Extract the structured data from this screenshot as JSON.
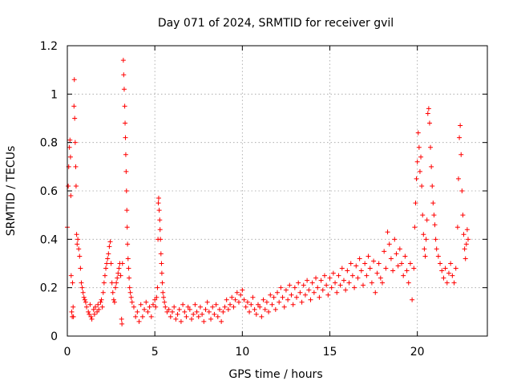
{
  "chart_data": {
    "type": "scatter",
    "title": "Day 071 of 2024, SRMTID for receiver gvil",
    "xlabel": "GPS time / hours",
    "ylabel": "SRMTID / TECUs",
    "xlim": [
      0,
      24
    ],
    "ylim": [
      0,
      1.2
    ],
    "xticks": [
      0,
      5,
      10,
      15,
      20
    ],
    "xtick_labels": [
      "0",
      "5",
      "10",
      "15",
      "20"
    ],
    "yticks": [
      0,
      0.2,
      0.4,
      0.6,
      0.8,
      1.0,
      1.2
    ],
    "ytick_labels": [
      "0",
      "0.2",
      "0.4",
      "0.6",
      "0.8",
      "1",
      "1.2"
    ],
    "grid": true,
    "marker": "+",
    "color": "#ff0000",
    "series": [
      {
        "name": "SRMTID",
        "points": [
          [
            0.0,
            0.45
          ],
          [
            0.05,
            0.62
          ],
          [
            0.08,
            0.7
          ],
          [
            0.12,
            0.78
          ],
          [
            0.15,
            0.81
          ],
          [
            0.18,
            0.74
          ],
          [
            0.2,
            0.58
          ],
          [
            0.22,
            0.25
          ],
          [
            0.25,
            0.1
          ],
          [
            0.28,
            0.08
          ],
          [
            0.3,
            0.22
          ],
          [
            0.33,
            0.12
          ],
          [
            0.35,
            0.08
          ],
          [
            0.38,
            0.95
          ],
          [
            0.4,
            1.06
          ],
          [
            0.42,
            0.9
          ],
          [
            0.45,
            0.8
          ],
          [
            0.48,
            0.7
          ],
          [
            0.5,
            0.62
          ],
          [
            0.53,
            0.42
          ],
          [
            0.56,
            0.38
          ],
          [
            0.6,
            0.4
          ],
          [
            0.65,
            0.36
          ],
          [
            0.7,
            0.33
          ],
          [
            0.75,
            0.28
          ],
          [
            0.8,
            0.22
          ],
          [
            0.85,
            0.2
          ],
          [
            0.9,
            0.18
          ],
          [
            0.95,
            0.16
          ],
          [
            1.0,
            0.15
          ],
          [
            1.05,
            0.14
          ],
          [
            1.1,
            0.12
          ],
          [
            1.2,
            0.1
          ],
          [
            1.25,
            0.09
          ],
          [
            1.3,
            0.13
          ],
          [
            1.35,
            0.08
          ],
          [
            1.4,
            0.07
          ],
          [
            1.5,
            0.11
          ],
          [
            1.55,
            0.09
          ],
          [
            1.6,
            0.12
          ],
          [
            1.7,
            0.1
          ],
          [
            1.75,
            0.13
          ],
          [
            1.8,
            0.11
          ],
          [
            1.9,
            0.14
          ],
          [
            1.95,
            0.15
          ],
          [
            2.0,
            0.12
          ],
          [
            2.05,
            0.18
          ],
          [
            2.1,
            0.22
          ],
          [
            2.15,
            0.25
          ],
          [
            2.2,
            0.28
          ],
          [
            2.25,
            0.3
          ],
          [
            2.3,
            0.32
          ],
          [
            2.35,
            0.34
          ],
          [
            2.4,
            0.37
          ],
          [
            2.45,
            0.39
          ],
          [
            2.5,
            0.3
          ],
          [
            2.55,
            0.22
          ],
          [
            2.6,
            0.18
          ],
          [
            2.65,
            0.15
          ],
          [
            2.7,
            0.14
          ],
          [
            2.75,
            0.2
          ],
          [
            2.8,
            0.22
          ],
          [
            2.85,
            0.24
          ],
          [
            2.9,
            0.26
          ],
          [
            2.95,
            0.28
          ],
          [
            3.0,
            0.3
          ],
          [
            3.05,
            0.25
          ],
          [
            3.1,
            0.07
          ],
          [
            3.12,
            0.05
          ],
          [
            3.15,
            0.3
          ],
          [
            3.2,
            1.14
          ],
          [
            3.22,
            1.08
          ],
          [
            3.25,
            1.02
          ],
          [
            3.28,
            0.95
          ],
          [
            3.3,
            0.88
          ],
          [
            3.32,
            0.82
          ],
          [
            3.34,
            0.75
          ],
          [
            3.36,
            0.68
          ],
          [
            3.38,
            0.6
          ],
          [
            3.4,
            0.52
          ],
          [
            3.42,
            0.45
          ],
          [
            3.44,
            0.38
          ],
          [
            3.47,
            0.32
          ],
          [
            3.5,
            0.28
          ],
          [
            3.53,
            0.24
          ],
          [
            3.56,
            0.2
          ],
          [
            3.6,
            0.18
          ],
          [
            3.65,
            0.16
          ],
          [
            3.7,
            0.14
          ],
          [
            3.8,
            0.12
          ],
          [
            3.9,
            0.08
          ],
          [
            4.0,
            0.1
          ],
          [
            4.1,
            0.06
          ],
          [
            4.2,
            0.13
          ],
          [
            4.3,
            0.08
          ],
          [
            4.4,
            0.11
          ],
          [
            4.5,
            0.14
          ],
          [
            4.6,
            0.1
          ],
          [
            4.7,
            0.12
          ],
          [
            4.8,
            0.08
          ],
          [
            4.9,
            0.13
          ],
          [
            5.0,
            0.15
          ],
          [
            5.05,
            0.12
          ],
          [
            5.1,
            0.16
          ],
          [
            5.15,
            0.2
          ],
          [
            5.18,
            0.4
          ],
          [
            5.2,
            0.55
          ],
          [
            5.22,
            0.57
          ],
          [
            5.25,
            0.52
          ],
          [
            5.28,
            0.48
          ],
          [
            5.3,
            0.44
          ],
          [
            5.32,
            0.4
          ],
          [
            5.35,
            0.34
          ],
          [
            5.38,
            0.3
          ],
          [
            5.4,
            0.26
          ],
          [
            5.43,
            0.22
          ],
          [
            5.46,
            0.18
          ],
          [
            5.5,
            0.16
          ],
          [
            5.55,
            0.14
          ],
          [
            5.6,
            0.12
          ],
          [
            5.7,
            0.1
          ],
          [
            5.8,
            0.11
          ],
          [
            5.9,
            0.08
          ],
          [
            6.0,
            0.1
          ],
          [
            6.1,
            0.12
          ],
          [
            6.2,
            0.07
          ],
          [
            6.3,
            0.09
          ],
          [
            6.4,
            0.11
          ],
          [
            6.5,
            0.06
          ],
          [
            6.6,
            0.13
          ],
          [
            6.7,
            0.1
          ],
          [
            6.8,
            0.08
          ],
          [
            6.9,
            0.12
          ],
          [
            7.0,
            0.11
          ],
          [
            7.1,
            0.07
          ],
          [
            7.2,
            0.09
          ],
          [
            7.3,
            0.13
          ],
          [
            7.4,
            0.1
          ],
          [
            7.5,
            0.08
          ],
          [
            7.6,
            0.12
          ],
          [
            7.7,
            0.09
          ],
          [
            7.8,
            0.06
          ],
          [
            7.9,
            0.11
          ],
          [
            8.0,
            0.14
          ],
          [
            8.1,
            0.1
          ],
          [
            8.2,
            0.07
          ],
          [
            8.3,
            0.12
          ],
          [
            8.4,
            0.09
          ],
          [
            8.5,
            0.13
          ],
          [
            8.6,
            0.08
          ],
          [
            8.7,
            0.11
          ],
          [
            8.8,
            0.06
          ],
          [
            8.9,
            0.1
          ],
          [
            9.0,
            0.12
          ],
          [
            9.1,
            0.15
          ],
          [
            9.2,
            0.11
          ],
          [
            9.3,
            0.13
          ],
          [
            9.4,
            0.16
          ],
          [
            9.5,
            0.12
          ],
          [
            9.6,
            0.15
          ],
          [
            9.7,
            0.18
          ],
          [
            9.8,
            0.14
          ],
          [
            9.9,
            0.17
          ],
          [
            10.0,
            0.19
          ],
          [
            10.1,
            0.15
          ],
          [
            10.2,
            0.12
          ],
          [
            10.3,
            0.14
          ],
          [
            10.4,
            0.1
          ],
          [
            10.5,
            0.13
          ],
          [
            10.6,
            0.16
          ],
          [
            10.7,
            0.11
          ],
          [
            10.8,
            0.09
          ],
          [
            10.9,
            0.13
          ],
          [
            11.0,
            0.12
          ],
          [
            11.1,
            0.08
          ],
          [
            11.2,
            0.15
          ],
          [
            11.3,
            0.11
          ],
          [
            11.4,
            0.14
          ],
          [
            11.5,
            0.1
          ],
          [
            11.6,
            0.17
          ],
          [
            11.7,
            0.13
          ],
          [
            11.8,
            0.16
          ],
          [
            11.9,
            0.11
          ],
          [
            12.0,
            0.18
          ],
          [
            12.1,
            0.14
          ],
          [
            12.2,
            0.2
          ],
          [
            12.3,
            0.16
          ],
          [
            12.4,
            0.12
          ],
          [
            12.5,
            0.19
          ],
          [
            12.6,
            0.15
          ],
          [
            12.7,
            0.21
          ],
          [
            12.8,
            0.17
          ],
          [
            12.9,
            0.13
          ],
          [
            13.0,
            0.2
          ],
          [
            13.1,
            0.16
          ],
          [
            13.2,
            0.22
          ],
          [
            13.3,
            0.18
          ],
          [
            13.4,
            0.14
          ],
          [
            13.5,
            0.21
          ],
          [
            13.6,
            0.17
          ],
          [
            13.7,
            0.23
          ],
          [
            13.8,
            0.19
          ],
          [
            13.9,
            0.15
          ],
          [
            14.0,
            0.22
          ],
          [
            14.1,
            0.18
          ],
          [
            14.2,
            0.24
          ],
          [
            14.3,
            0.2
          ],
          [
            14.4,
            0.16
          ],
          [
            14.5,
            0.23
          ],
          [
            14.6,
            0.19
          ],
          [
            14.7,
            0.25
          ],
          [
            14.8,
            0.21
          ],
          [
            14.9,
            0.17
          ],
          [
            15.0,
            0.24
          ],
          [
            15.1,
            0.2
          ],
          [
            15.2,
            0.26
          ],
          [
            15.3,
            0.22
          ],
          [
            15.4,
            0.18
          ],
          [
            15.5,
            0.25
          ],
          [
            15.6,
            0.21
          ],
          [
            15.7,
            0.28
          ],
          [
            15.8,
            0.23
          ],
          [
            15.9,
            0.19
          ],
          [
            16.0,
            0.27
          ],
          [
            16.1,
            0.22
          ],
          [
            16.2,
            0.3
          ],
          [
            16.3,
            0.25
          ],
          [
            16.4,
            0.2
          ],
          [
            16.5,
            0.29
          ],
          [
            16.6,
            0.24
          ],
          [
            16.7,
            0.32
          ],
          [
            16.8,
            0.27
          ],
          [
            16.9,
            0.21
          ],
          [
            17.0,
            0.3
          ],
          [
            17.1,
            0.25
          ],
          [
            17.2,
            0.33
          ],
          [
            17.3,
            0.28
          ],
          [
            17.4,
            0.22
          ],
          [
            17.5,
            0.31
          ],
          [
            17.6,
            0.18
          ],
          [
            17.7,
            0.26
          ],
          [
            17.8,
            0.3
          ],
          [
            17.9,
            0.24
          ],
          [
            18.0,
            0.22
          ],
          [
            18.1,
            0.35
          ],
          [
            18.2,
            0.28
          ],
          [
            18.3,
            0.43
          ],
          [
            18.4,
            0.38
          ],
          [
            18.5,
            0.32
          ],
          [
            18.6,
            0.27
          ],
          [
            18.7,
            0.4
          ],
          [
            18.8,
            0.34
          ],
          [
            18.9,
            0.29
          ],
          [
            19.0,
            0.36
          ],
          [
            19.1,
            0.3
          ],
          [
            19.2,
            0.25
          ],
          [
            19.3,
            0.33
          ],
          [
            19.4,
            0.27
          ],
          [
            19.5,
            0.22
          ],
          [
            19.6,
            0.3
          ],
          [
            19.7,
            0.15
          ],
          [
            19.8,
            0.28
          ],
          [
            19.85,
            0.45
          ],
          [
            19.9,
            0.55
          ],
          [
            19.95,
            0.65
          ],
          [
            20.0,
            0.72
          ],
          [
            20.05,
            0.84
          ],
          [
            20.1,
            0.78
          ],
          [
            20.15,
            0.68
          ],
          [
            20.2,
            0.74
          ],
          [
            20.25,
            0.62
          ],
          [
            20.3,
            0.5
          ],
          [
            20.35,
            0.42
          ],
          [
            20.4,
            0.36
          ],
          [
            20.45,
            0.33
          ],
          [
            20.5,
            0.4
          ],
          [
            20.55,
            0.48
          ],
          [
            20.6,
            0.92
          ],
          [
            20.65,
            0.94
          ],
          [
            20.7,
            0.88
          ],
          [
            20.75,
            0.78
          ],
          [
            20.8,
            0.7
          ],
          [
            20.85,
            0.62
          ],
          [
            20.9,
            0.55
          ],
          [
            20.95,
            0.5
          ],
          [
            21.0,
            0.46
          ],
          [
            21.05,
            0.4
          ],
          [
            21.1,
            0.36
          ],
          [
            21.2,
            0.33
          ],
          [
            21.3,
            0.3
          ],
          [
            21.4,
            0.27
          ],
          [
            21.5,
            0.24
          ],
          [
            21.6,
            0.28
          ],
          [
            21.7,
            0.22
          ],
          [
            21.8,
            0.26
          ],
          [
            21.9,
            0.3
          ],
          [
            22.0,
            0.25
          ],
          [
            22.1,
            0.22
          ],
          [
            22.2,
            0.28
          ],
          [
            22.3,
            0.45
          ],
          [
            22.35,
            0.65
          ],
          [
            22.4,
            0.82
          ],
          [
            22.45,
            0.87
          ],
          [
            22.5,
            0.75
          ],
          [
            22.55,
            0.6
          ],
          [
            22.6,
            0.5
          ],
          [
            22.65,
            0.42
          ],
          [
            22.7,
            0.36
          ],
          [
            22.75,
            0.32
          ],
          [
            22.8,
            0.38
          ],
          [
            22.85,
            0.44
          ],
          [
            22.9,
            0.4
          ]
        ]
      }
    ]
  }
}
